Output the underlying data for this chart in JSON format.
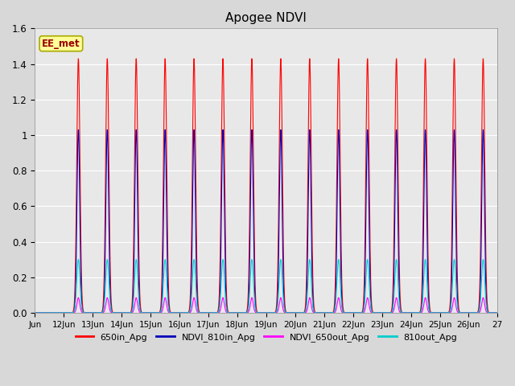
{
  "title": "Apogee NDVI",
  "ylim": [
    0.0,
    1.6
  ],
  "yticks": [
    0.0,
    0.2,
    0.4,
    0.6,
    0.8,
    1.0,
    1.2,
    1.4,
    1.6
  ],
  "num_days": 16,
  "series": {
    "650in_Apg": {
      "color": "#ff0000",
      "peak": 1.43,
      "sigma": 0.055
    },
    "NDVI_810in_Apg": {
      "color": "#0000bb",
      "peak": 1.03,
      "sigma": 0.048
    },
    "NDVI_650out_Apg": {
      "color": "#ff00ff",
      "peak": 0.085,
      "sigma": 0.048
    },
    "810out_Apg": {
      "color": "#00cccc",
      "peak": 0.3,
      "sigma": 0.055
    }
  },
  "series_order": [
    "650in_Apg",
    "NDVI_810in_Apg",
    "NDVI_650out_Apg",
    "810out_Apg"
  ],
  "fig_bg_color": "#d8d8d8",
  "plot_bg_color": "#e8e8e8",
  "grid_color": "#ffffff",
  "annotation_text": "EE_met",
  "annotation_color": "#990000",
  "annotation_bg": "#ffff99",
  "annotation_border": "#aaaa00",
  "legend_entries": [
    "650in_Apg",
    "NDVI_810in_Apg",
    "NDVI_650out_Apg",
    "810out_Apg"
  ],
  "legend_colors": [
    "#ff0000",
    "#0000bb",
    "#ff00ff",
    "#00cccc"
  ],
  "tick_labels": [
    "Jun",
    "12Jun",
    "13Jun",
    "14Jun",
    "15Jun",
    "16Jun",
    "17Jun",
    "18Jun",
    "19Jun",
    "20Jun",
    "21Jun",
    "22Jun",
    "23Jun",
    "24Jun",
    "25Jun",
    "26Jun",
    "27"
  ]
}
